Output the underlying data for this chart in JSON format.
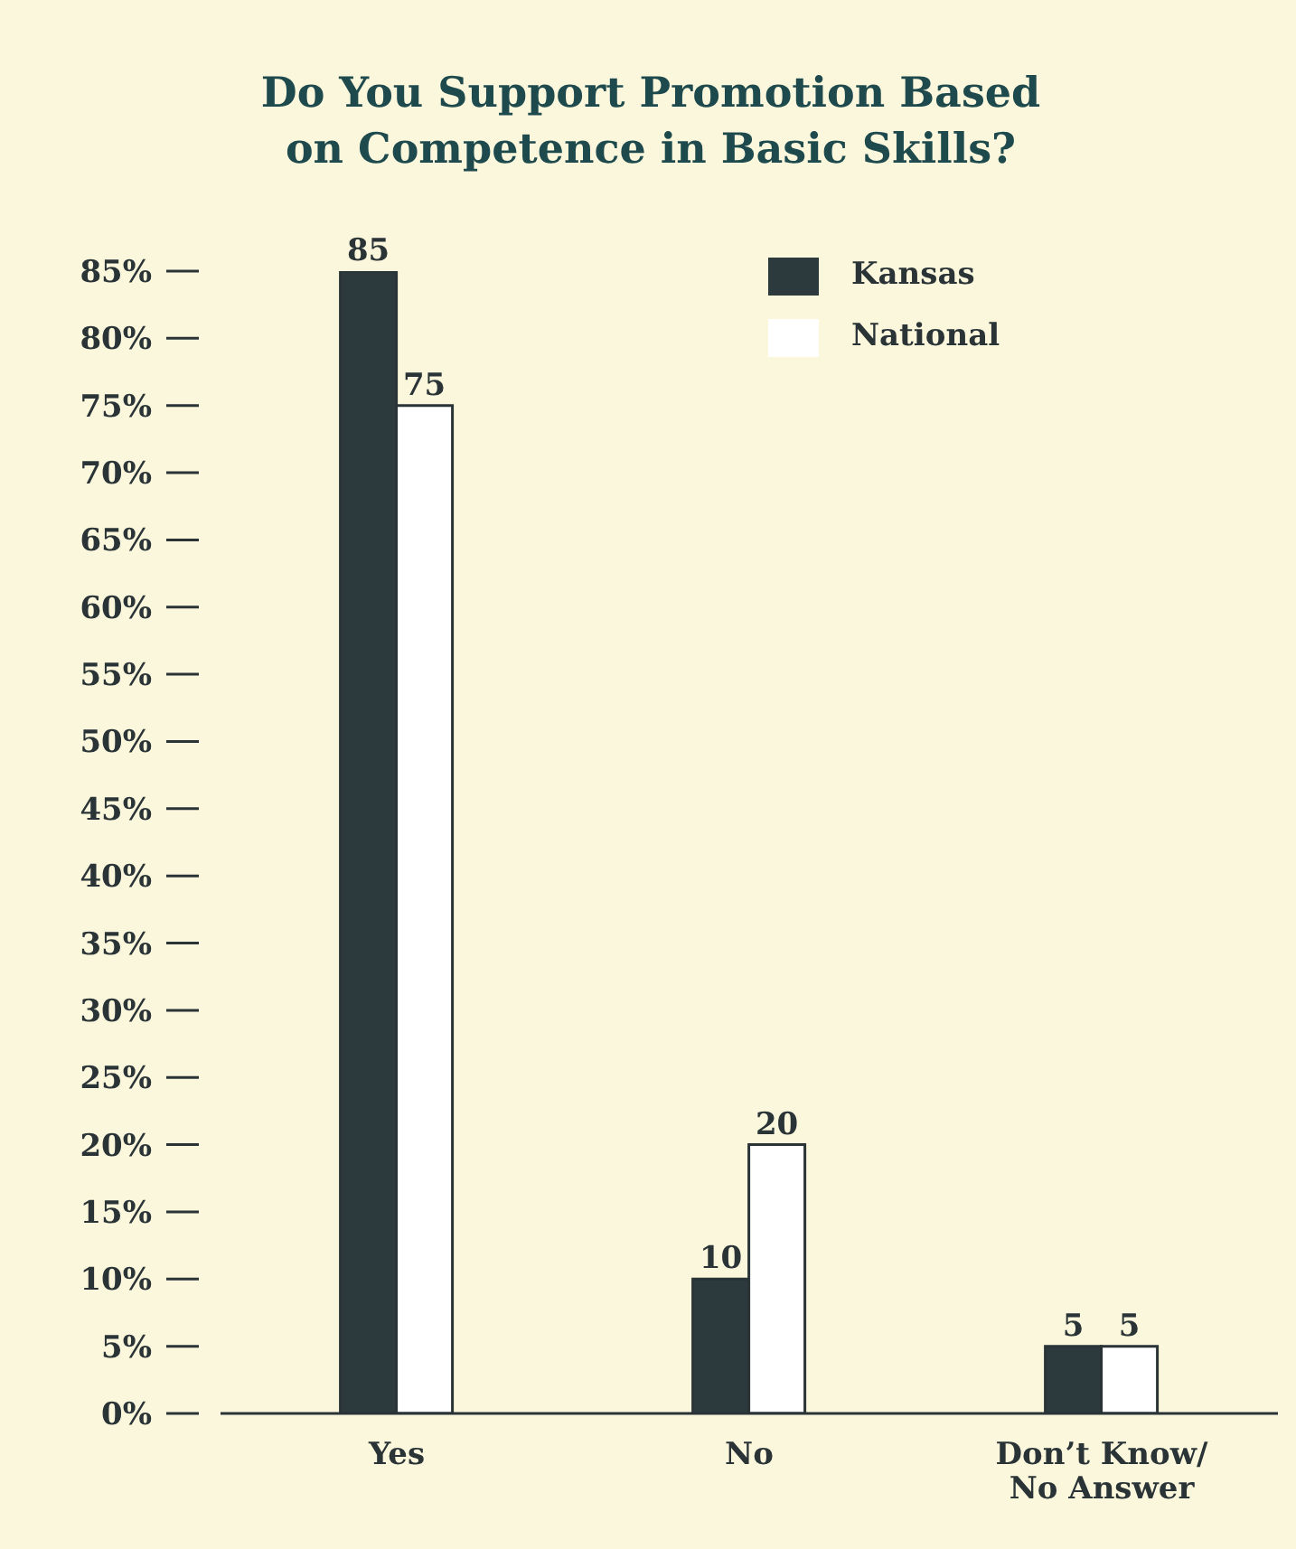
{
  "chart_data": {
    "type": "bar",
    "title": "Do You Support Promotion Based on Competence in Basic Skills?",
    "categories": [
      "Yes",
      "No",
      "Don’t Know/ No Answer"
    ],
    "series": [
      {
        "name": "Kansas",
        "color": "#2c393d",
        "values": [
          85,
          10,
          5
        ]
      },
      {
        "name": "National",
        "color": "#ffffff",
        "values": [
          75,
          20,
          5
        ]
      }
    ],
    "ylim": [
      0,
      85
    ],
    "yticks": [
      {
        "value": 0,
        "label": "0%"
      },
      {
        "value": 5,
        "label": "5%"
      },
      {
        "value": 10,
        "label": "10%"
      },
      {
        "value": 15,
        "label": "15%"
      },
      {
        "value": 20,
        "label": "20%"
      },
      {
        "value": 25,
        "label": "25%"
      },
      {
        "value": 30,
        "label": "30%"
      },
      {
        "value": 35,
        "label": "35%"
      },
      {
        "value": 40,
        "label": "40%"
      },
      {
        "value": 45,
        "label": "45%"
      },
      {
        "value": 50,
        "label": "50%"
      },
      {
        "value": 55,
        "label": "55%"
      },
      {
        "value": 60,
        "label": "60%"
      },
      {
        "value": 65,
        "label": "65%"
      },
      {
        "value": 70,
        "label": "70%"
      },
      {
        "value": 75,
        "label": "75%"
      },
      {
        "value": 80,
        "label": "80%"
      },
      {
        "value": 85,
        "label": "85%"
      }
    ],
    "data_labels": true,
    "legend": "top right",
    "grid": false
  }
}
